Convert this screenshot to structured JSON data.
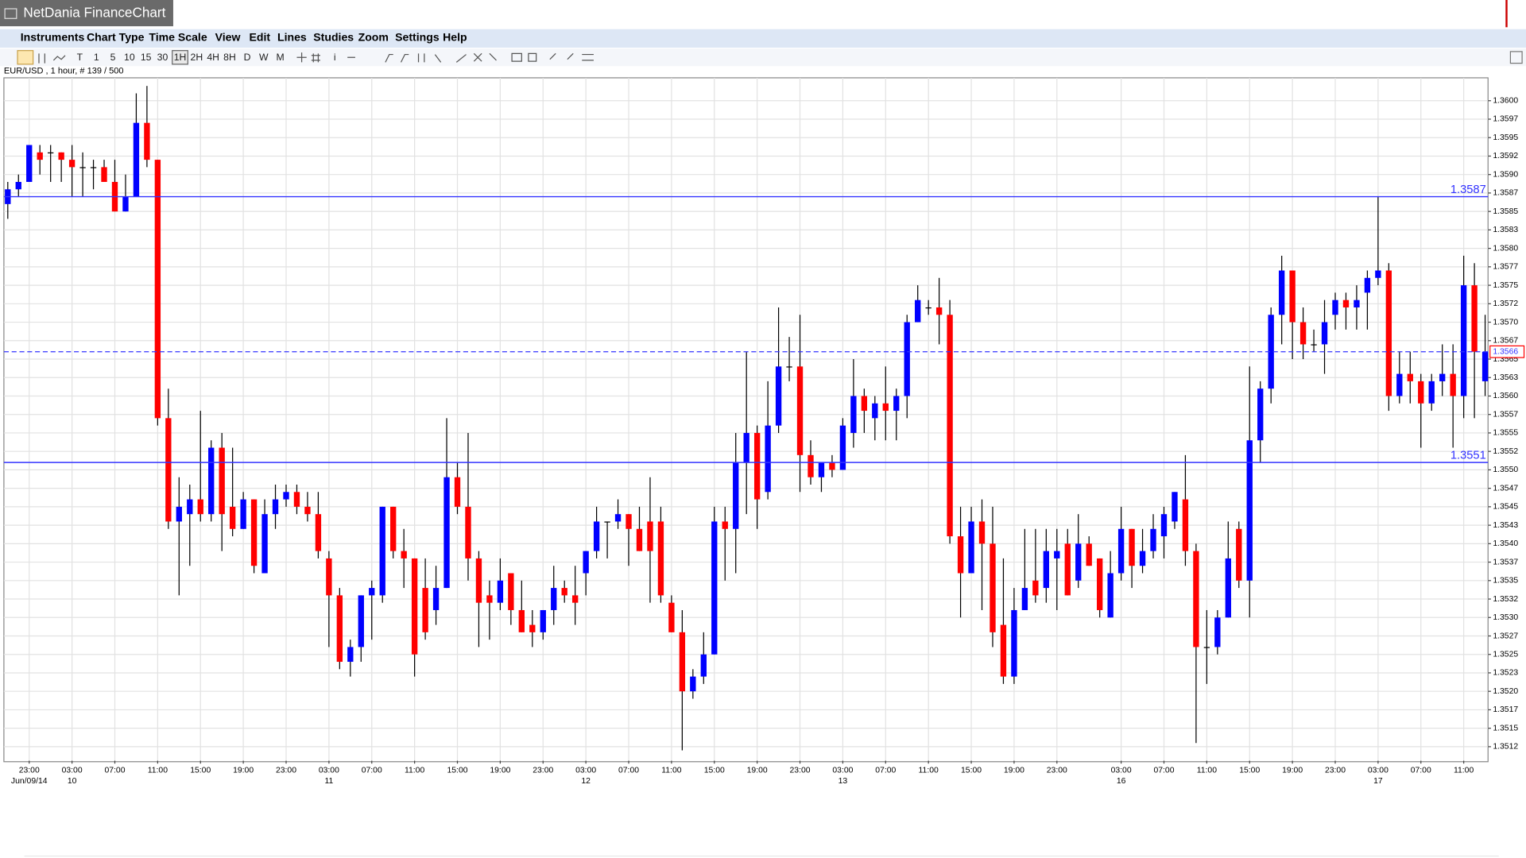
{
  "window": {
    "title": "NetDania FinanceChart"
  },
  "menu": [
    "Instruments",
    "Chart Type",
    "Time Scale",
    "View",
    "Edit",
    "Lines",
    "Studies",
    "Zoom",
    "Settings",
    "Help"
  ],
  "toolbar": [
    "T",
    "1",
    "5",
    "10",
    "15",
    "30",
    "1H",
    "2H",
    "4H",
    "8H",
    "D",
    "W",
    "M",
    "i"
  ],
  "info": "EUR/USD , 1 hour, # 139 / 500",
  "chart_data": {
    "type": "candlestick",
    "up_color": "#0000ff",
    "down_color": "#ff0000",
    "line_color": "#3333ff",
    "grid": true,
    "ylim": [
      1.35106,
      1.36031
    ],
    "yticks": [
      {
        "value": 1.36,
        "label": "1.3600"
      },
      {
        "value": 1.35975,
        "label": "1.3597"
      },
      1.3595,
      {
        "value": 1.35925,
        "label": "1.3592"
      },
      {
        "value": 1.359,
        "label": "1.3590"
      },
      {
        "value": 1.35875,
        "label": "1.3587"
      },
      1.3585,
      {
        "value": 1.35825,
        "label": "1.3583"
      },
      {
        "value": 1.358,
        "label": "1.3580"
      },
      {
        "value": 1.35775,
        "label": "1.3577"
      },
      1.3575,
      {
        "value": 1.35725,
        "label": "1.3572"
      },
      {
        "value": 1.357,
        "label": "1.3570"
      },
      {
        "value": 1.35675,
        "label": "1.3567"
      },
      1.3565,
      {
        "value": 1.35625,
        "label": "1.3563"
      },
      {
        "value": 1.356,
        "label": "1.3560"
      },
      {
        "value": 1.35575,
        "label": "1.3557"
      },
      1.3555,
      {
        "value": 1.35525,
        "label": "1.3552"
      },
      {
        "value": 1.355,
        "label": "1.3550"
      },
      {
        "value": 1.35475,
        "label": "1.3547"
      },
      1.3545,
      {
        "value": 1.35425,
        "label": "1.3543"
      },
      {
        "value": 1.354,
        "label": "1.3540"
      },
      {
        "value": 1.35375,
        "label": "1.3537"
      },
      1.3535,
      {
        "value": 1.35325,
        "label": "1.3532"
      },
      {
        "value": 1.353,
        "label": "1.3530"
      },
      {
        "value": 1.35275,
        "label": "1.3527"
      },
      1.3525,
      {
        "value": 1.35225,
        "label": "1.3523"
      },
      {
        "value": 1.352,
        "label": "1.3520"
      },
      {
        "value": 1.35175,
        "label": "1.3517"
      },
      1.3515,
      {
        "value": 1.35125,
        "label": "1.3512"
      }
    ],
    "hlines": [
      1.3587,
      1.3551
    ],
    "current": 1.3566,
    "categories": [
      null,
      null,
      "23:00",
      null,
      null,
      null,
      "03:00",
      null,
      null,
      null,
      "07:00",
      null,
      null,
      null,
      "11:00",
      null,
      null,
      null,
      "15:00",
      null,
      null,
      null,
      "19:00",
      null,
      null,
      null,
      "23:00",
      null,
      null,
      null,
      "03:00",
      null,
      null,
      null,
      "07:00",
      null,
      null,
      null,
      "11:00",
      null,
      null,
      null,
      "15:00",
      null,
      null,
      null,
      "19:00",
      null,
      null,
      null,
      "23:00",
      null,
      null,
      null,
      "03:00",
      null,
      null,
      null,
      "07:00",
      null,
      null,
      null,
      "11:00",
      null,
      null,
      null,
      "15:00",
      null,
      null,
      null,
      "19:00",
      null,
      null,
      null,
      "23:00",
      null,
      null,
      null,
      "03:00",
      null,
      null,
      null,
      "07:00",
      null,
      null,
      null,
      "11:00",
      null,
      null,
      null,
      "15:00",
      null,
      null,
      null,
      "19:00",
      null,
      null,
      null,
      "23:00",
      null,
      null,
      null,
      null,
      null,
      "03:00",
      null,
      null,
      null,
      "07:00",
      null,
      null,
      null,
      "11:00",
      null,
      null,
      null,
      "15:00",
      null,
      null,
      null,
      "19:00",
      null,
      null,
      null,
      "23:00",
      null,
      null,
      null,
      "03:00",
      null,
      null,
      null,
      "07:00",
      null,
      null,
      null,
      "11:00",
      null,
      null
    ],
    "dates": [
      null,
      null,
      "Jun/09/14",
      null,
      null,
      null,
      "10",
      null,
      null,
      null,
      null,
      null,
      null,
      null,
      null,
      null,
      null,
      null,
      null,
      null,
      null,
      null,
      null,
      null,
      null,
      null,
      null,
      null,
      null,
      null,
      "11",
      null,
      null,
      null,
      null,
      null,
      null,
      null,
      null,
      null,
      null,
      null,
      null,
      null,
      null,
      null,
      null,
      null,
      null,
      null,
      null,
      null,
      null,
      null,
      "12",
      null,
      null,
      null,
      null,
      null,
      null,
      null,
      null,
      null,
      null,
      null,
      null,
      null,
      null,
      null,
      null,
      null,
      null,
      null,
      null,
      null,
      null,
      null,
      "13",
      null,
      null,
      null,
      null,
      null,
      null,
      null,
      null,
      null,
      null,
      null,
      null,
      null,
      null,
      null,
      null,
      null,
      null,
      null,
      null,
      null,
      null,
      null,
      null,
      null,
      "16",
      null,
      null,
      null,
      null,
      null,
      null,
      null,
      null,
      null,
      null,
      null,
      null,
      null,
      null,
      null,
      null,
      null,
      null,
      null,
      null,
      null,
      null,
      null,
      "17",
      null,
      null,
      null,
      null,
      null,
      null,
      null,
      null,
      null,
      null
    ],
    "open": [
      1.3586,
      1.3588,
      1.3589,
      1.3593,
      1.3593,
      1.3593,
      1.3592,
      1.3591,
      1.3591,
      1.3591,
      1.3589,
      1.3585,
      1.3587,
      1.3597,
      1.3592,
      1.3557,
      1.3543,
      1.3544,
      1.3546,
      1.3544,
      1.3553,
      1.3545,
      1.3542,
      1.3546,
      1.3536,
      1.3544,
      1.3546,
      1.3547,
      1.3545,
      1.3544,
      1.3538,
      1.3533,
      1.3524,
      1.3526,
      1.3533,
      1.3533,
      1.3545,
      1.3539,
      1.3538,
      1.3534,
      1.3531,
      1.3534,
      1.3549,
      1.3545,
      1.3538,
      1.3533,
      1.3532,
      1.3536,
      1.3531,
      1.3529,
      1.3528,
      1.3531,
      1.3534,
      1.3533,
      1.3536,
      1.3539,
      1.3543,
      1.3543,
      1.3544,
      1.3542,
      1.3543,
      1.3543,
      1.3532,
      1.3528,
      1.352,
      1.3522,
      1.3525,
      1.3543,
      1.3542,
      1.3551,
      1.3555,
      1.3547,
      1.3556,
      1.3564,
      1.3564,
      1.3552,
      1.3549,
      1.3551,
      1.355,
      1.3555,
      1.356,
      1.3557,
      1.3559,
      1.3558,
      1.356,
      1.357,
      1.3572,
      1.3572,
      1.3571,
      1.3541,
      1.3536,
      1.3543,
      1.354,
      1.3529,
      1.3522,
      1.3531,
      1.3535,
      1.3534,
      1.3538,
      1.354,
      1.3535,
      1.354,
      1.3538,
      1.353,
      1.3536,
      1.3542,
      1.3537,
      1.3539,
      1.3541,
      1.3543,
      1.3546,
      1.3539,
      1.3526,
      1.3526,
      1.353,
      1.3542,
      1.3535,
      1.3554,
      1.3561,
      1.3571,
      1.3577,
      1.357,
      1.3567,
      1.3567,
      1.3571,
      1.3573,
      1.3572,
      1.3574,
      1.3576,
      1.3577,
      1.356,
      1.3563,
      1.3562,
      1.3559,
      1.3562,
      1.3563,
      1.356,
      1.3575,
      1.3562
    ],
    "high": [
      1.3589,
      1.359,
      1.3594,
      1.3594,
      1.3594,
      1.3593,
      1.3594,
      1.3593,
      1.3592,
      1.3592,
      1.3592,
      1.359,
      1.3601,
      1.3602,
      1.3592,
      1.3561,
      1.3549,
      1.3548,
      1.3558,
      1.3554,
      1.3555,
      1.3553,
      1.3547,
      1.3546,
      1.3546,
      1.3548,
      1.3548,
      1.3548,
      1.3547,
      1.3547,
      1.3539,
      1.3534,
      1.3527,
      1.3533,
      1.3535,
      1.3545,
      1.3545,
      1.3542,
      1.3538,
      1.3538,
      1.3537,
      1.3557,
      1.3551,
      1.3555,
      1.3539,
      1.3535,
      1.3538,
      1.3536,
      1.3535,
      1.3531,
      1.3531,
      1.3537,
      1.3535,
      1.3537,
      1.3539,
      1.3545,
      1.3543,
      1.3546,
      1.3544,
      1.3545,
      1.3549,
      1.3545,
      1.3533,
      1.3531,
      1.3523,
      1.3528,
      1.3545,
      1.3545,
      1.3555,
      1.3566,
      1.3556,
      1.3562,
      1.3572,
      1.3568,
      1.3571,
      1.3554,
      1.3551,
      1.3552,
      1.3557,
      1.3565,
      1.3561,
      1.356,
      1.3564,
      1.3561,
      1.3571,
      1.3575,
      1.3573,
      1.3576,
      1.3573,
      1.3545,
      1.3545,
      1.3546,
      1.3545,
      1.3538,
      1.3534,
      1.3542,
      1.3542,
      1.3542,
      1.3542,
      1.3542,
      1.3544,
      1.3541,
      1.3538,
      1.3539,
      1.3545,
      1.3542,
      1.3542,
      1.3544,
      1.3545,
      1.3547,
      1.3552,
      1.354,
      1.3531,
      1.3531,
      1.3543,
      1.3543,
      1.3564,
      1.3562,
      1.3572,
      1.3579,
      1.3577,
      1.3572,
      1.3569,
      1.3573,
      1.3574,
      1.3574,
      1.3575,
      1.3577,
      1.3587,
      1.3578,
      1.3566,
      1.3566,
      1.3563,
      1.3563,
      1.3567,
      1.3567,
      1.3579,
      1.3578,
      1.3571
    ],
    "low": [
      1.3584,
      1.3587,
      1.3589,
      1.359,
      1.3589,
      1.3589,
      1.3587,
      1.3587,
      1.3588,
      1.3589,
      1.3585,
      1.3585,
      1.3587,
      1.3591,
      1.3556,
      1.3542,
      1.3533,
      1.3537,
      1.3543,
      1.3543,
      1.3539,
      1.3541,
      1.3542,
      1.3536,
      1.3536,
      1.3542,
      1.3545,
      1.3544,
      1.3543,
      1.3538,
      1.3526,
      1.3523,
      1.3522,
      1.3524,
      1.3527,
      1.3532,
      1.3538,
      1.3534,
      1.3522,
      1.3527,
      1.3529,
      1.3534,
      1.3544,
      1.3535,
      1.3526,
      1.3527,
      1.3531,
      1.3529,
      1.3528,
      1.3526,
      1.3527,
      1.3529,
      1.3532,
      1.3529,
      1.3533,
      1.3538,
      1.3538,
      1.3542,
      1.3537,
      1.3539,
      1.3532,
      1.3532,
      1.3528,
      1.3512,
      1.3519,
      1.3521,
      1.3525,
      1.3535,
      1.3536,
      1.3544,
      1.3542,
      1.3546,
      1.3555,
      1.3562,
      1.3547,
      1.3548,
      1.3547,
      1.3549,
      1.355,
      1.3553,
      1.3555,
      1.3554,
      1.3554,
      1.3554,
      1.3557,
      1.357,
      1.3571,
      1.3567,
      1.354,
      1.353,
      1.3536,
      1.3531,
      1.3526,
      1.3521,
      1.3521,
      1.3531,
      1.3532,
      1.3532,
      1.3531,
      1.3533,
      1.3534,
      1.3537,
      1.353,
      1.353,
      1.3535,
      1.3534,
      1.3536,
      1.3538,
      1.3538,
      1.3542,
      1.3537,
      1.3513,
      1.3521,
      1.3525,
      1.353,
      1.3534,
      1.353,
      1.3551,
      1.3559,
      1.3567,
      1.3565,
      1.3565,
      1.3566,
      1.3563,
      1.3569,
      1.3569,
      1.3569,
      1.3569,
      1.3575,
      1.3558,
      1.3559,
      1.3559,
      1.3553,
      1.3558,
      1.356,
      1.3553,
      1.3557,
      1.3557,
      1.356
    ],
    "close": [
      1.3588,
      1.3589,
      1.3594,
      1.3592,
      1.3593,
      1.3592,
      1.3591,
      1.3591,
      1.3591,
      1.3589,
      1.3585,
      1.3587,
      1.3597,
      1.3592,
      1.3557,
      1.3543,
      1.3545,
      1.3546,
      1.3544,
      1.3553,
      1.3544,
      1.3542,
      1.3546,
      1.3537,
      1.3544,
      1.3546,
      1.3547,
      1.3545,
      1.3544,
      1.3539,
      1.3533,
      1.3524,
      1.3526,
      1.3533,
      1.3534,
      1.3545,
      1.3539,
      1.3538,
      1.3525,
      1.3528,
      1.3534,
      1.3549,
      1.3545,
      1.3538,
      1.3532,
      1.3532,
      1.3535,
      1.3531,
      1.3528,
      1.3528,
      1.3531,
      1.3534,
      1.3533,
      1.3532,
      1.3539,
      1.3543,
      1.3543,
      1.3544,
      1.3542,
      1.3539,
      1.3539,
      1.3533,
      1.3528,
      1.352,
      1.3522,
      1.3525,
      1.3543,
      1.3542,
      1.3551,
      1.3555,
      1.3546,
      1.3556,
      1.3564,
      1.3564,
      1.3552,
      1.3549,
      1.3551,
      1.355,
      1.3556,
      1.356,
      1.3558,
      1.3559,
      1.3558,
      1.356,
      1.357,
      1.3573,
      1.3572,
      1.3571,
      1.3541,
      1.3536,
      1.3543,
      1.354,
      1.3528,
      1.3522,
      1.3531,
      1.3534,
      1.3533,
      1.3539,
      1.3539,
      1.3533,
      1.354,
      1.3537,
      1.3531,
      1.3536,
      1.3542,
      1.3537,
      1.3539,
      1.3542,
      1.3544,
      1.3547,
      1.3539,
      1.3526,
      1.3526,
      1.353,
      1.3538,
      1.3535,
      1.3554,
      1.3561,
      1.3571,
      1.3577,
      1.357,
      1.3567,
      1.3567,
      1.357,
      1.3573,
      1.3572,
      1.3573,
      1.3576,
      1.3577,
      1.356,
      1.3563,
      1.3562,
      1.3559,
      1.3562,
      1.3563,
      1.356,
      1.3575,
      1.3566,
      1.3566
    ]
  }
}
